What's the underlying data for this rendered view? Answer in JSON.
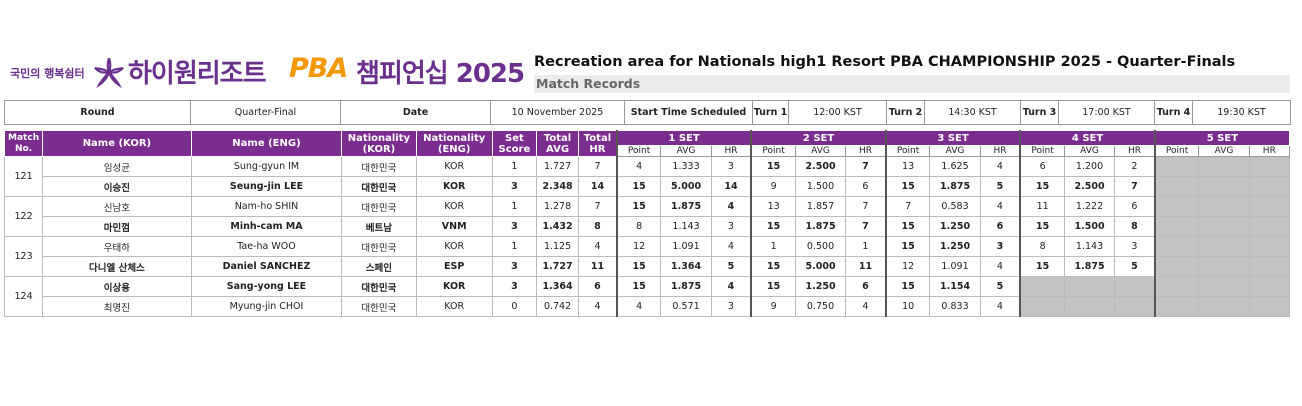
{
  "header": {
    "logo_small": "국민의 행복쉼터",
    "logo_main": "하이원리조트",
    "logo_pba": "PBA",
    "logo_champ": "챔피언십 2025",
    "title": "Recreation area for Nationals high1 Resort PBA CHAMPIONSHIP 2025 - Quarter-Finals",
    "subtitle": "Match Records",
    "colors": {
      "purple": "#7b2c8f",
      "orange": "#f39800"
    }
  },
  "info": {
    "round_label": "Round",
    "round_value": "Quarter-Final",
    "date_label": "Date",
    "date_value": "10 November 2025",
    "start_label": "Start Time Scheduled",
    "turns": [
      {
        "label": "Turn 1",
        "time": "12:00 KST"
      },
      {
        "label": "Turn 2",
        "time": "14:30 KST"
      },
      {
        "label": "Turn 3",
        "time": "17:00 KST"
      },
      {
        "label": "Turn 4",
        "time": "19:30 KST"
      }
    ]
  },
  "columns": {
    "match_no": "Match No.",
    "name_kor": "Name (KOR)",
    "name_eng": "Name (ENG)",
    "nat_kor": "Nationality (KOR)",
    "nat_eng": "Nationality (ENG)",
    "set_score": "Set Score",
    "total_avg": "Total AVG",
    "total_hr": "Total HR",
    "sets": [
      "1 SET",
      "2 SET",
      "3 SET",
      "4 SET",
      "5 SET"
    ],
    "set_sub": [
      "Point",
      "AVG",
      "HR"
    ]
  },
  "matches": [
    {
      "no": "121",
      "players": [
        {
          "name_kor": "임성균",
          "name_eng": "Sung-gyun IM",
          "nat_kor": "대한민국",
          "nat_eng": "KOR",
          "set_score": "1",
          "total_avg": "1.727",
          "total_hr": "7",
          "winner": false,
          "sets": [
            [
              "4",
              "1.333",
              "3",
              false
            ],
            [
              "15",
              "2.500",
              "7",
              true
            ],
            [
              "13",
              "1.625",
              "4",
              false
            ],
            [
              "6",
              "1.200",
              "2",
              false
            ],
            null
          ]
        },
        {
          "name_kor": "이승진",
          "name_eng": "Seung-jin LEE",
          "nat_kor": "대한민국",
          "nat_eng": "KOR",
          "set_score": "3",
          "total_avg": "2.348",
          "total_hr": "14",
          "winner": true,
          "sets": [
            [
              "15",
              "5.000",
              "14",
              true
            ],
            [
              "9",
              "1.500",
              "6",
              false
            ],
            [
              "15",
              "1.875",
              "5",
              true
            ],
            [
              "15",
              "2.500",
              "7",
              true
            ],
            null
          ]
        }
      ]
    },
    {
      "no": "122",
      "players": [
        {
          "name_kor": "신남호",
          "name_eng": "Nam-ho SHIN",
          "nat_kor": "대한민국",
          "nat_eng": "KOR",
          "set_score": "1",
          "total_avg": "1.278",
          "total_hr": "7",
          "winner": false,
          "sets": [
            [
              "15",
              "1.875",
              "4",
              true
            ],
            [
              "13",
              "1.857",
              "7",
              false
            ],
            [
              "7",
              "0.583",
              "4",
              false
            ],
            [
              "11",
              "1.222",
              "6",
              false
            ],
            null
          ]
        },
        {
          "name_kor": "마민껌",
          "name_eng": "Minh-cam MA",
          "nat_kor": "베트남",
          "nat_eng": "VNM",
          "set_score": "3",
          "total_avg": "1.432",
          "total_hr": "8",
          "winner": true,
          "sets": [
            [
              "8",
              "1.143",
              "3",
              false
            ],
            [
              "15",
              "1.875",
              "7",
              true
            ],
            [
              "15",
              "1.250",
              "6",
              true
            ],
            [
              "15",
              "1.500",
              "8",
              true
            ],
            null
          ]
        }
      ]
    },
    {
      "no": "123",
      "players": [
        {
          "name_kor": "우태하",
          "name_eng": "Tae-ha WOO",
          "nat_kor": "대한민국",
          "nat_eng": "KOR",
          "set_score": "1",
          "total_avg": "1.125",
          "total_hr": "4",
          "winner": false,
          "sets": [
            [
              "12",
              "1.091",
              "4",
              false
            ],
            [
              "1",
              "0.500",
              "1",
              false
            ],
            [
              "15",
              "1.250",
              "3",
              true
            ],
            [
              "8",
              "1.143",
              "3",
              false
            ],
            null
          ]
        },
        {
          "name_kor": "다니엘 산체스",
          "name_eng": "Daniel SANCHEZ",
          "nat_kor": "스페인",
          "nat_eng": "ESP",
          "set_score": "3",
          "total_avg": "1.727",
          "total_hr": "11",
          "winner": true,
          "sets": [
            [
              "15",
              "1.364",
              "5",
              true
            ],
            [
              "15",
              "5.000",
              "11",
              true
            ],
            [
              "12",
              "1.091",
              "4",
              false
            ],
            [
              "15",
              "1.875",
              "5",
              true
            ],
            null
          ]
        }
      ]
    },
    {
      "no": "124",
      "players": [
        {
          "name_kor": "이상용",
          "name_eng": "Sang-yong LEE",
          "nat_kor": "대한민국",
          "nat_eng": "KOR",
          "set_score": "3",
          "total_avg": "1.364",
          "total_hr": "6",
          "winner": true,
          "sets": [
            [
              "15",
              "1.875",
              "4",
              true
            ],
            [
              "15",
              "1.250",
              "6",
              true
            ],
            [
              "15",
              "1.154",
              "5",
              true
            ],
            null,
            null
          ]
        },
        {
          "name_kor": "최명진",
          "name_eng": "Myung-jin CHOI",
          "nat_kor": "대한민국",
          "nat_eng": "KOR",
          "set_score": "0",
          "total_avg": "0.742",
          "total_hr": "4",
          "winner": false,
          "sets": [
            [
              "4",
              "0.571",
              "3",
              false
            ],
            [
              "9",
              "0.750",
              "4",
              false
            ],
            [
              "10",
              "0.833",
              "4",
              false
            ],
            null,
            null
          ]
        }
      ]
    }
  ]
}
